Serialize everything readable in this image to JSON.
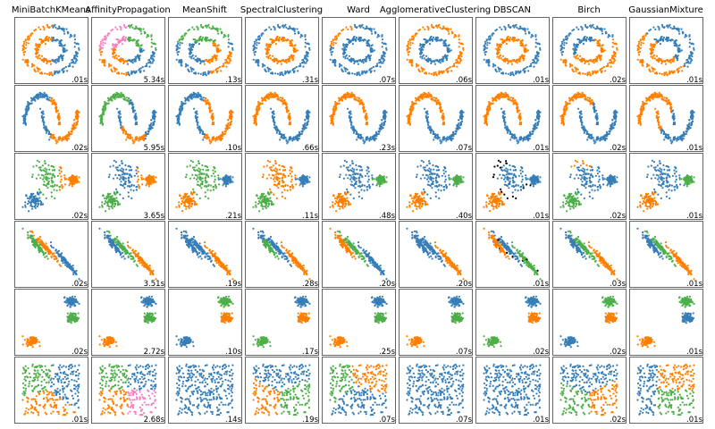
{
  "chart_data": {
    "type": "scatter",
    "layout": "grid of 6 datasets (rows) by 9 clustering algorithms (columns)",
    "algorithms": [
      "MiniBatchKMeans",
      "AffinityPropagation",
      "MeanShift",
      "SpectralClustering",
      "Ward",
      "AgglomerativeClustering",
      "DBSCAN",
      "Birch",
      "GaussianMixture"
    ],
    "datasets": [
      "noisy_circles",
      "noisy_moons",
      "varied",
      "aniso",
      "blobs",
      "no_structure"
    ],
    "times": [
      [
        ".01s",
        "5.34s",
        ".13s",
        ".31s",
        ".07s",
        ".06s",
        ".01s",
        ".02s",
        ".01s"
      ],
      [
        ".02s",
        "5.95s",
        ".10s",
        ".66s",
        ".23s",
        ".07s",
        ".01s",
        ".02s",
        ".01s"
      ],
      [
        ".02s",
        "3.65s",
        ".21s",
        ".11s",
        ".48s",
        ".40s",
        ".01s",
        ".02s",
        ".01s"
      ],
      [
        ".02s",
        "3.51s",
        ".19s",
        ".28s",
        ".20s",
        ".20s",
        ".01s",
        ".03s",
        ".01s"
      ],
      [
        ".02s",
        "2.72s",
        ".10s",
        ".17s",
        ".25s",
        ".07s",
        ".02s",
        ".02s",
        ".01s"
      ],
      [
        ".01s",
        "2.68s",
        ".14s",
        ".19s",
        ".07s",
        ".07s",
        ".01s",
        ".02s",
        ".01s"
      ]
    ],
    "cluster_colors": {
      "blue": "#377eb8",
      "orange": "#ff7f00",
      "green": "#4daf4a",
      "pink": "#f781bf",
      "noise": "#000000"
    },
    "axes": "hidden (no ticks)",
    "grid": false
  }
}
